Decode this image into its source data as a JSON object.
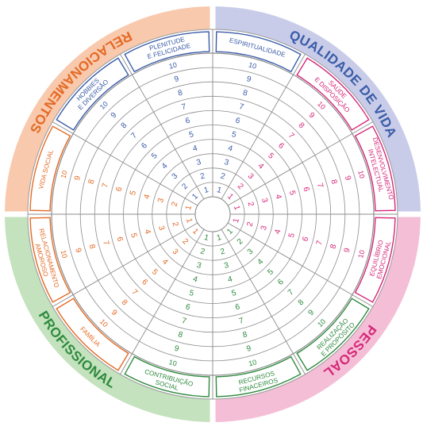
{
  "quadrants": [
    {
      "label": "QUALIDADE DE VIDA",
      "color": "#3a5ca8",
      "bg": "#c9cce8"
    },
    {
      "label": "PESSOAL",
      "color": "#d6277a",
      "bg": "#f4bfd6"
    },
    {
      "label": "PROFISSIONAL",
      "color": "#2f8a3f",
      "bg": "#c3e2bd"
    },
    {
      "label": "RELACIONAMENTOS",
      "color": "#e46a25",
      "bg": "#f8c9ad"
    }
  ],
  "categories": [
    {
      "lines": [
        "ESPIRITUALIDADE"
      ],
      "quadrant": 0
    },
    {
      "lines": [
        "SAÚDE",
        "E DISPOSIÇÃO"
      ],
      "quadrant": 1
    },
    {
      "lines": [
        "DESENVOLVIMENTO",
        "INTELECTUAL"
      ],
      "quadrant": 1
    },
    {
      "lines": [
        "EQUILÍBRIO",
        "EMOCIONAL"
      ],
      "quadrant": 1
    },
    {
      "lines": [
        "REALIZAÇÃO",
        "E PROPÓSITO"
      ],
      "quadrant": 2
    },
    {
      "lines": [
        "RECURSOS",
        "FINACEIROS"
      ],
      "quadrant": 2
    },
    {
      "lines": [
        "CONTRIBUIÇÃO",
        "SOCIAL"
      ],
      "quadrant": 2
    },
    {
      "lines": [
        "FAMÍLIA"
      ],
      "quadrant": 3
    },
    {
      "lines": [
        "RELACIONAMENTO",
        "AMOROSO"
      ],
      "quadrant": 3
    },
    {
      "lines": [
        "VIDA SOCIAL"
      ],
      "quadrant": 3
    },
    {
      "lines": [
        "HOBBIES",
        "E DIVERSÃO"
      ],
      "quadrant": 0
    },
    {
      "lines": [
        "PLENITUDE",
        "E FELICIDADE"
      ],
      "quadrant": 0
    }
  ],
  "scale": [
    "1",
    "2",
    "3",
    "4",
    "5",
    "6",
    "7",
    "8",
    "9",
    "10"
  ]
}
